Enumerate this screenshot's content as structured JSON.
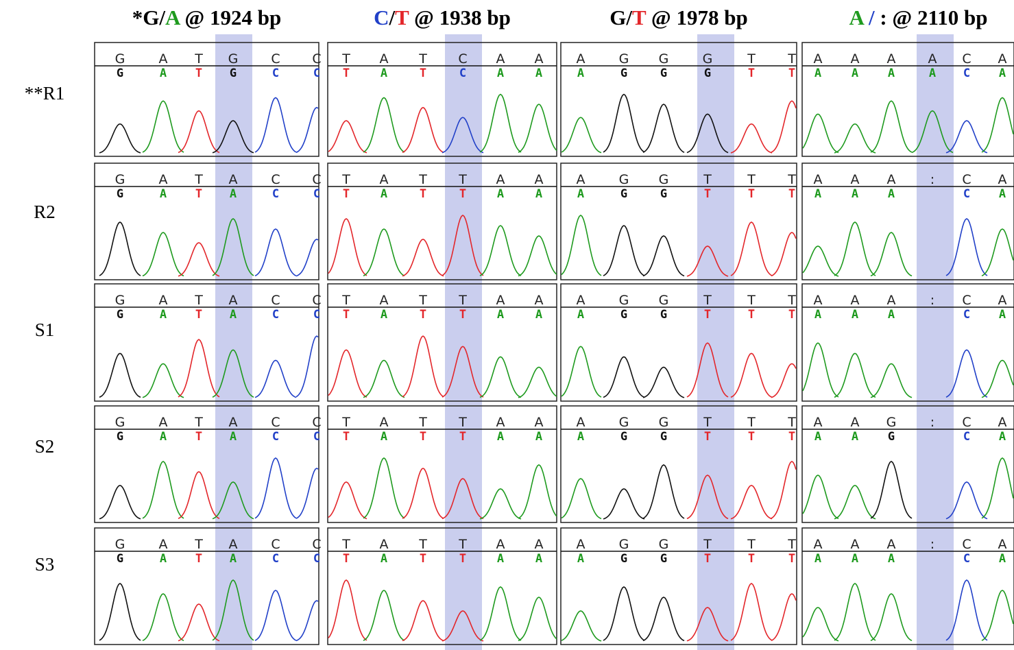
{
  "base_colors": {
    "G": "#111111",
    "A": "#1e9a1e",
    "T": "#e3262a",
    "C": "#2140c8",
    ":": "#555555"
  },
  "highlight_color": "#9fa6e0",
  "rows": [
    "**R1",
    "R2",
    "S1",
    "S2",
    "S3"
  ],
  "columns": [
    {
      "header": [
        {
          "text": "*G",
          "color": "#000000"
        },
        {
          "text": "/",
          "color": "#000000"
        },
        {
          "text": "A",
          "color": "#1e9a1e"
        },
        {
          "text": " @ 1924 bp",
          "color": "#000000"
        }
      ],
      "panels": [
        {
          "top": [
            "G",
            "A",
            "T",
            "G",
            "C",
            "C"
          ],
          "calls": [
            "G",
            "A",
            "T",
            "G",
            "C",
            "C"
          ]
        },
        {
          "top": [
            "G",
            "A",
            "T",
            "A",
            "C",
            "C"
          ],
          "calls": [
            "G",
            "A",
            "T",
            "A",
            "C",
            "C"
          ]
        },
        {
          "top": [
            "G",
            "A",
            "T",
            "A",
            "C",
            "C"
          ],
          "calls": [
            "G",
            "A",
            "T",
            "A",
            "C",
            "C"
          ]
        },
        {
          "top": [
            "G",
            "A",
            "T",
            "A",
            "C",
            "C"
          ],
          "calls": [
            "G",
            "A",
            "T",
            "A",
            "C",
            "C"
          ]
        },
        {
          "top": [
            "G",
            "A",
            "T",
            "A",
            "C",
            "C"
          ],
          "calls": [
            "G",
            "A",
            "T",
            "A",
            "C",
            "C"
          ]
        }
      ]
    },
    {
      "header": [
        {
          "text": "C",
          "color": "#2140c8"
        },
        {
          "text": "/",
          "color": "#000000"
        },
        {
          "text": "T",
          "color": "#e3262a"
        },
        {
          "text": " @ 1938 bp",
          "color": "#000000"
        }
      ],
      "panels": [
        {
          "top": [
            "T",
            "A",
            "T",
            "C",
            "A",
            "A"
          ],
          "calls": [
            "T",
            "A",
            "T",
            "C",
            "A",
            "A"
          ]
        },
        {
          "top": [
            "T",
            "A",
            "T",
            "T",
            "A",
            "A"
          ],
          "calls": [
            "T",
            "A",
            "T",
            "T",
            "A",
            "A"
          ]
        },
        {
          "top": [
            "T",
            "A",
            "T",
            "T",
            "A",
            "A"
          ],
          "calls": [
            "T",
            "A",
            "T",
            "T",
            "A",
            "A"
          ]
        },
        {
          "top": [
            "T",
            "A",
            "T",
            "T",
            "A",
            "A"
          ],
          "calls": [
            "T",
            "A",
            "T",
            "T",
            "A",
            "A"
          ]
        },
        {
          "top": [
            "T",
            "A",
            "T",
            "T",
            "A",
            "A"
          ],
          "calls": [
            "T",
            "A",
            "T",
            "T",
            "A",
            "A"
          ]
        }
      ]
    },
    {
      "header": [
        {
          "text": "G",
          "color": "#000000"
        },
        {
          "text": "/",
          "color": "#000000"
        },
        {
          "text": "T",
          "color": "#e3262a"
        },
        {
          "text": " @ 1978 bp",
          "color": "#000000"
        }
      ],
      "panels": [
        {
          "top": [
            "A",
            "G",
            "G",
            "G",
            "T",
            "T"
          ],
          "calls": [
            "A",
            "G",
            "G",
            "G",
            "T",
            "T"
          ]
        },
        {
          "top": [
            "A",
            "G",
            "G",
            "T",
            "T",
            "T"
          ],
          "calls": [
            "A",
            "G",
            "G",
            "T",
            "T",
            "T"
          ]
        },
        {
          "top": [
            "A",
            "G",
            "G",
            "T",
            "T",
            "T"
          ],
          "calls": [
            "A",
            "G",
            "G",
            "T",
            "T",
            "T"
          ]
        },
        {
          "top": [
            "A",
            "G",
            "G",
            "T",
            "T",
            "T"
          ],
          "calls": [
            "A",
            "G",
            "G",
            "T",
            "T",
            "T"
          ]
        },
        {
          "top": [
            "A",
            "G",
            "G",
            "T",
            "T",
            "T"
          ],
          "calls": [
            "A",
            "G",
            "G",
            "T",
            "T",
            "T"
          ]
        }
      ]
    },
    {
      "header": [
        {
          "text": "A",
          "color": "#1e9a1e"
        },
        {
          "text": " / ",
          "color": "#2140c8"
        },
        {
          "text": ": @ 2110 bp",
          "color": "#000000"
        }
      ],
      "panels": [
        {
          "top": [
            "A",
            "A",
            "A",
            "A",
            "C",
            "A"
          ],
          "calls": [
            "A",
            "A",
            "A",
            "A",
            "C",
            "A"
          ]
        },
        {
          "top": [
            "A",
            "A",
            "A",
            ":",
            "C",
            "A"
          ],
          "calls": [
            "A",
            "A",
            "A",
            "C",
            "A"
          ]
        },
        {
          "top": [
            "A",
            "A",
            "A",
            ":",
            "C",
            "A"
          ],
          "calls": [
            "A",
            "A",
            "A",
            "C",
            "A"
          ]
        },
        {
          "top": [
            "A",
            "A",
            "G",
            ":",
            "C",
            "A"
          ],
          "calls": [
            "A",
            "A",
            "G",
            "C",
            "A"
          ]
        },
        {
          "top": [
            "A",
            "A",
            "A",
            ":",
            "C",
            "A"
          ],
          "calls": [
            "A",
            "A",
            "A",
            "C",
            "A"
          ]
        }
      ]
    }
  ]
}
